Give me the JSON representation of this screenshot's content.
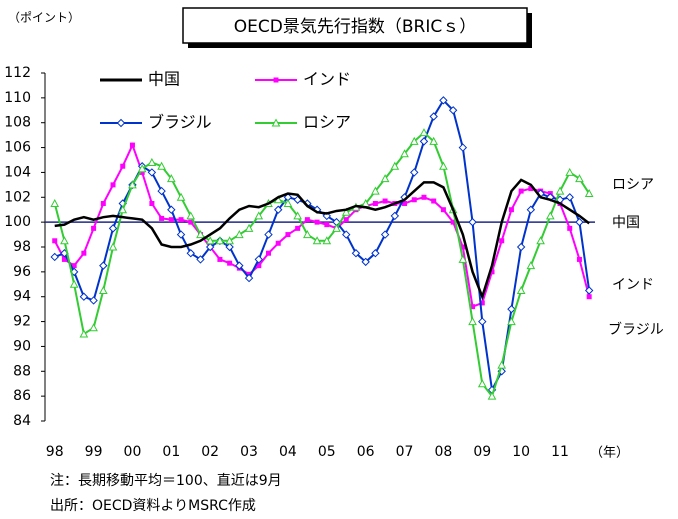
{
  "chart_data": {
    "type": "line",
    "title": "OECD景気先行指数（BRICｓ）",
    "y_unit": "（ポイント）",
    "x_unit": "（年）",
    "notes": [
      "注：長期移動平均＝100、直近は9月",
      "出所：OECD資料よりMSRC作成"
    ],
    "annotations": [
      "ロシア",
      "中国",
      "インド",
      "ブラジル"
    ],
    "reference_line": 100,
    "reference_color": "#1f2a8a",
    "xlim": [
      1997.75,
      2011.9
    ],
    "ylim": [
      84,
      112
    ],
    "yticks": [
      84,
      86,
      88,
      90,
      92,
      94,
      96,
      98,
      100,
      102,
      104,
      106,
      108,
      110,
      112
    ],
    "xticks": [
      {
        "value": 1998,
        "label": "98"
      },
      {
        "value": 1999,
        "label": "99"
      },
      {
        "value": 2000,
        "label": "00"
      },
      {
        "value": 2001,
        "label": "01"
      },
      {
        "value": 2002,
        "label": "02"
      },
      {
        "value": 2003,
        "label": "03"
      },
      {
        "value": 2004,
        "label": "04"
      },
      {
        "value": 2005,
        "label": "05"
      },
      {
        "value": 2006,
        "label": "06"
      },
      {
        "value": 2007,
        "label": "07"
      },
      {
        "value": 2008,
        "label": "08"
      },
      {
        "value": 2009,
        "label": "09"
      },
      {
        "value": 2010,
        "label": "10"
      },
      {
        "value": 2011,
        "label": "11"
      }
    ],
    "grid": false,
    "x": [
      1998,
      1998.25,
      1998.5,
      1998.75,
      1999,
      1999.25,
      1999.5,
      1999.75,
      2000,
      2000.25,
      2000.5,
      2000.75,
      2001,
      2001.25,
      2001.5,
      2001.75,
      2002,
      2002.25,
      2002.5,
      2002.75,
      2003,
      2003.25,
      2003.5,
      2003.75,
      2004,
      2004.25,
      2004.5,
      2004.75,
      2005,
      2005.25,
      2005.5,
      2005.75,
      2006,
      2006.25,
      2006.5,
      2006.75,
      2007,
      2007.25,
      2007.5,
      2007.75,
      2008,
      2008.25,
      2008.5,
      2008.75,
      2009,
      2009.25,
      2009.5,
      2009.75,
      2010,
      2010.25,
      2010.5,
      2010.75,
      2011,
      2011.25,
      2011.5,
      2011.75
    ],
    "series": [
      {
        "name": "中国",
        "color": "#000000",
        "marker": "none",
        "values": [
          99.7,
          99.8,
          100.2,
          100.4,
          100.2,
          100.4,
          100.5,
          100.4,
          100.3,
          100.2,
          99.5,
          98.2,
          98.0,
          98.0,
          98.2,
          98.5,
          99.0,
          99.5,
          100.3,
          101.0,
          101.3,
          101.2,
          101.5,
          102.0,
          102.3,
          102.2,
          101.3,
          100.8,
          100.7,
          100.9,
          101.0,
          101.3,
          101.2,
          101.0,
          101.2,
          101.5,
          101.8,
          102.5,
          103.2,
          103.2,
          102.8,
          101.0,
          99.0,
          96.0,
          94.0,
          96.5,
          100.0,
          102.5,
          103.4,
          103.0,
          102.0,
          101.8,
          101.5,
          101.0,
          100.5,
          99.9
        ]
      },
      {
        "name": "インド",
        "color": "#ff00ff",
        "marker": "square",
        "values": [
          98.5,
          97.0,
          96.5,
          97.5,
          99.5,
          101.5,
          103.0,
          104.5,
          106.2,
          104.0,
          101.5,
          100.3,
          100.2,
          100.2,
          100.0,
          99.0,
          98.0,
          97.0,
          96.7,
          96.3,
          95.8,
          96.5,
          97.5,
          98.3,
          99.0,
          99.5,
          100.2,
          100.0,
          99.8,
          99.5,
          100.2,
          101.0,
          101.3,
          101.5,
          101.7,
          101.5,
          101.5,
          101.8,
          102.0,
          101.7,
          101.0,
          100.0,
          98.0,
          93.2,
          93.5,
          96.0,
          98.5,
          101.0,
          102.5,
          102.7,
          102.5,
          102.3,
          101.5,
          99.5,
          97.0,
          94.0
        ]
      },
      {
        "name": "ブラジル",
        "color": "#0033cc",
        "marker": "diamond",
        "values": [
          97.2,
          97.5,
          96.0,
          94.0,
          93.7,
          96.5,
          99.5,
          101.5,
          103.0,
          104.5,
          104.0,
          102.5,
          101.0,
          99.0,
          97.5,
          97.0,
          98.0,
          98.5,
          98.0,
          96.5,
          95.5,
          97.0,
          99.0,
          101.0,
          102.0,
          101.8,
          101.5,
          101.0,
          100.5,
          100.0,
          99.0,
          97.5,
          96.8,
          97.5,
          99.0,
          100.5,
          102.0,
          104.0,
          106.5,
          108.5,
          109.8,
          109.0,
          106.0,
          100.0,
          92.0,
          86.5,
          88.0,
          93.0,
          98.0,
          101.0,
          102.3,
          102.0,
          101.8,
          102.0,
          100.0,
          94.5
        ]
      },
      {
        "name": "ロシア",
        "color": "#33cc33",
        "marker": "triangle",
        "values": [
          101.5,
          98.5,
          95.0,
          91.0,
          91.5,
          94.5,
          98.0,
          101.0,
          103.0,
          104.3,
          104.8,
          104.5,
          103.5,
          102.0,
          100.5,
          99.0,
          98.5,
          98.5,
          98.5,
          99.0,
          99.5,
          100.5,
          101.5,
          101.8,
          101.5,
          100.5,
          99.0,
          98.5,
          98.5,
          99.5,
          100.8,
          101.2,
          101.5,
          102.5,
          103.5,
          104.5,
          105.5,
          106.5,
          107.2,
          106.5,
          104.5,
          101.0,
          97.0,
          92.0,
          87.0,
          86.0,
          88.5,
          92.0,
          94.5,
          96.5,
          98.5,
          100.5,
          102.5,
          104.0,
          103.5,
          102.3
        ]
      }
    ]
  }
}
